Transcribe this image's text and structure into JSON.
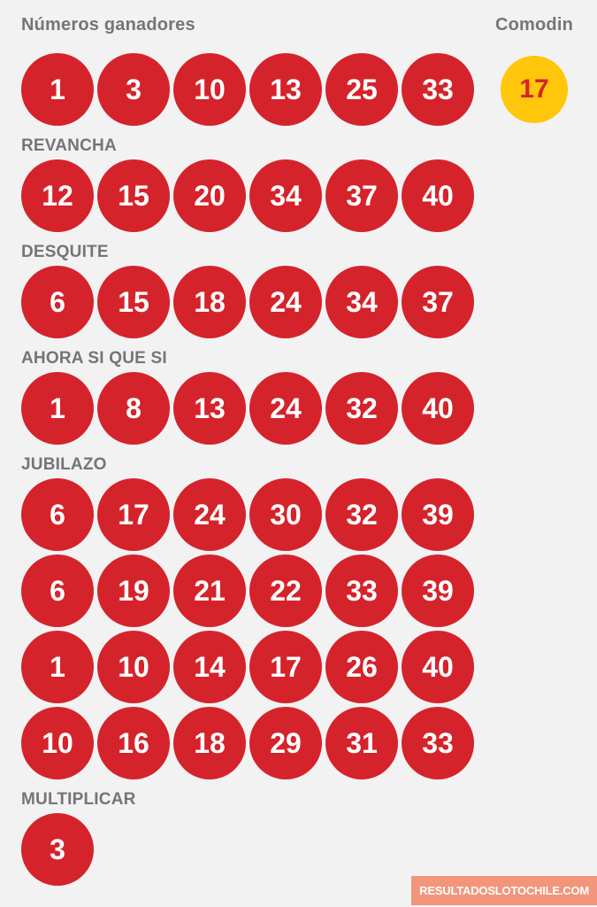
{
  "colors": {
    "background": "#F2F2F3",
    "ball_red": "#D5232B",
    "ball_text": "#FFFFFF",
    "comodin_yellow": "#FFC60B",
    "comodin_text": "#D5232B",
    "label_gray": "#747578",
    "watermark_bg": "#F2957B",
    "watermark_text": "#FFFFFF"
  },
  "header": {
    "title": "Números ganadores",
    "comodin_label": "Comodin",
    "comodin_number": "17"
  },
  "winning_numbers": [
    "1",
    "3",
    "10",
    "13",
    "25",
    "33"
  ],
  "sections": [
    {
      "label": "REVANCHA",
      "rows": [
        [
          "12",
          "15",
          "20",
          "34",
          "37",
          "40"
        ]
      ]
    },
    {
      "label": "DESQUITE",
      "rows": [
        [
          "6",
          "15",
          "18",
          "24",
          "34",
          "37"
        ]
      ]
    },
    {
      "label": "AHORA SI QUE SI",
      "rows": [
        [
          "1",
          "8",
          "13",
          "24",
          "32",
          "40"
        ]
      ]
    },
    {
      "label": "JUBILAZO",
      "rows": [
        [
          "6",
          "17",
          "24",
          "30",
          "32",
          "39"
        ],
        [
          "6",
          "19",
          "21",
          "22",
          "33",
          "39"
        ],
        [
          "1",
          "10",
          "14",
          "17",
          "26",
          "40"
        ],
        [
          "10",
          "16",
          "18",
          "29",
          "31",
          "33"
        ]
      ]
    },
    {
      "label": "MULTIPLICAR",
      "rows": [
        [
          "3"
        ]
      ]
    }
  ],
  "watermark": {
    "text": "RESULTADOSLOTOCHILE.COM"
  }
}
